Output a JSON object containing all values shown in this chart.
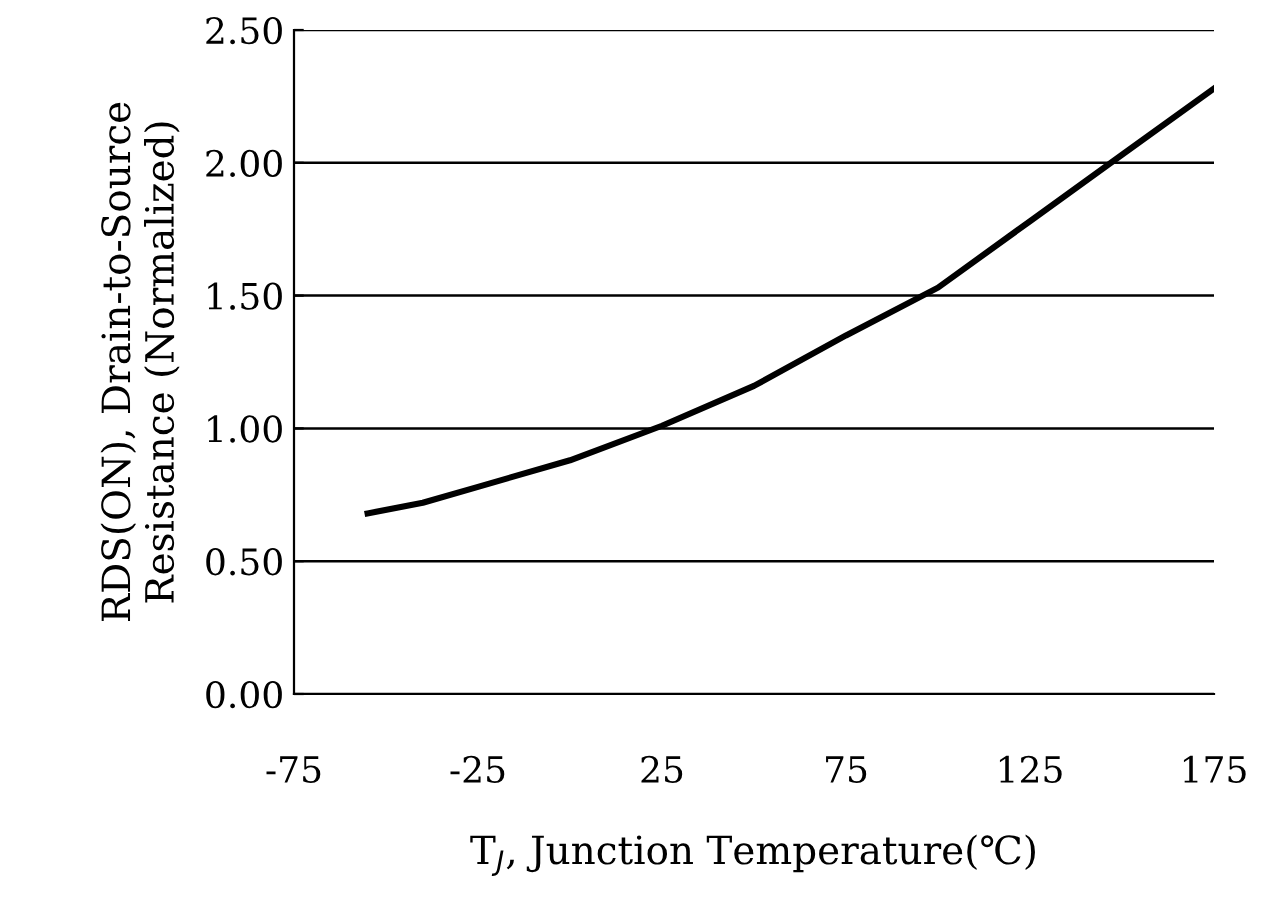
{
  "chart_data": {
    "type": "line",
    "xlabel": "T$_{J}$, Junction Temperature(℃)",
    "ylabel": "RDS(ON), Drain-to-Source\nResistance (Normalized)",
    "x": [
      -55,
      -40,
      -25,
      0,
      25,
      50,
      75,
      100,
      125,
      150,
      175
    ],
    "series": [
      {
        "color": "#000000",
        "values": [
          0.68,
          0.72,
          0.78,
          0.88,
          1.01,
          1.16,
          1.35,
          1.53,
          1.78,
          2.03,
          2.28
        ]
      }
    ],
    "xlim": [
      -75,
      175
    ],
    "xticks": [
      -75,
      -25,
      25,
      75,
      125,
      175
    ],
    "ylim": [
      0,
      2.5
    ],
    "yticks": [
      {
        "value": 0,
        "label": "0.00"
      },
      {
        "value": 0.5,
        "label": "0.50"
      },
      {
        "value": 1,
        "label": "1.00"
      },
      {
        "value": 1.5,
        "label": "1.50"
      },
      {
        "value": 2,
        "label": "2.00"
      },
      {
        "value": 2.5,
        "label": "2.50"
      }
    ],
    "grid": "y",
    "legend": false,
    "marker": "none",
    "line_style": "solid"
  }
}
